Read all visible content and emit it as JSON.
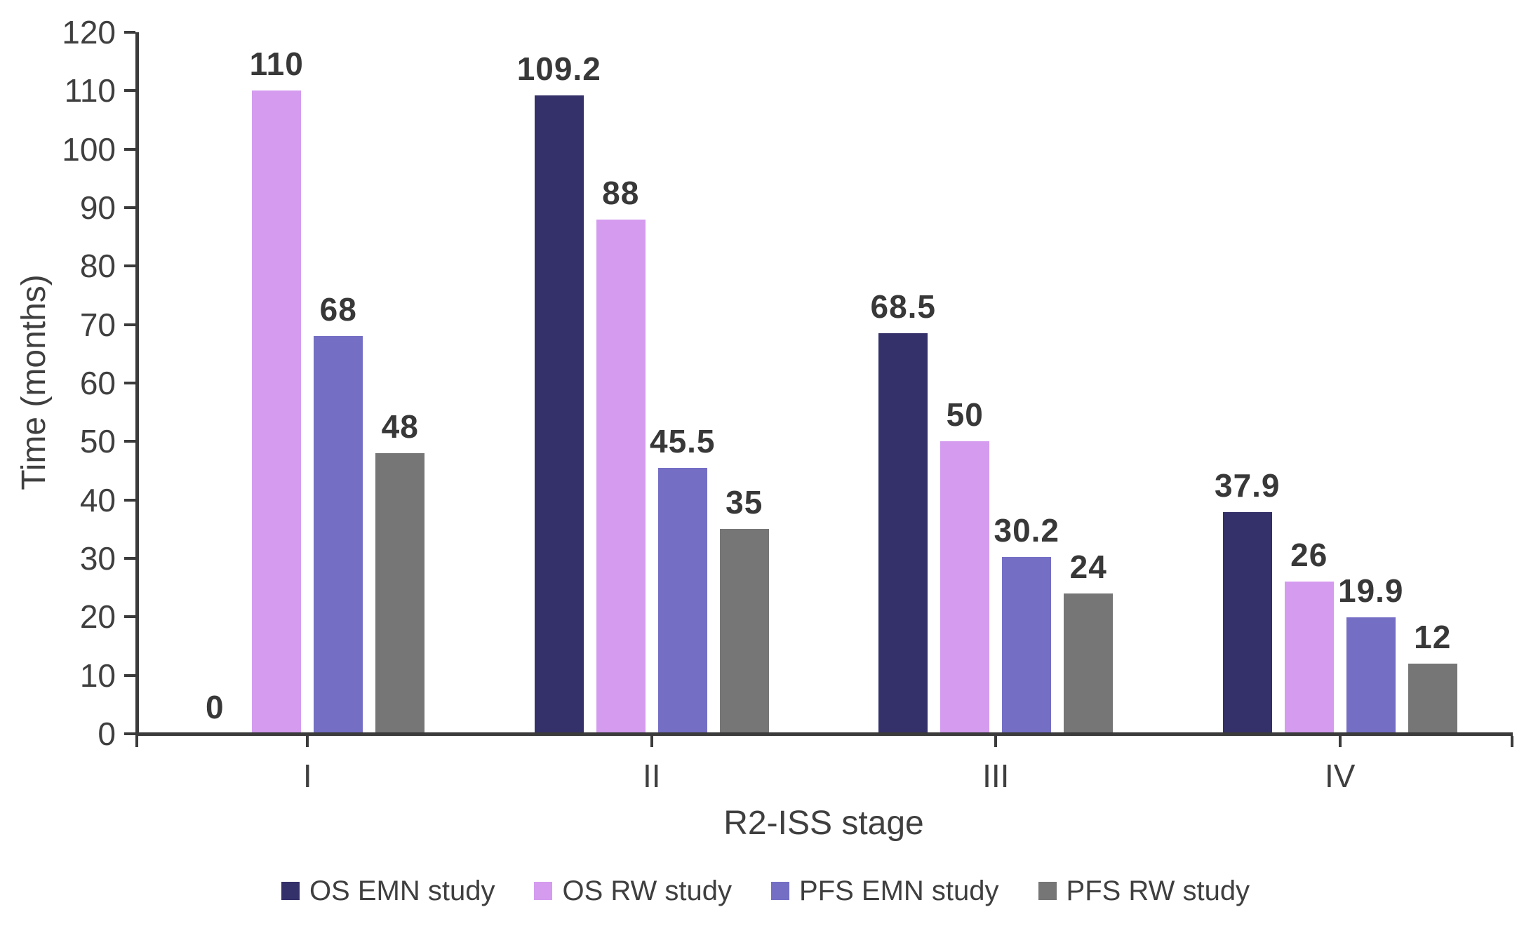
{
  "chart_data": {
    "type": "bar",
    "title": "",
    "xlabel": "R2-ISS stage",
    "ylabel": "Time (months)",
    "categories": [
      "I",
      "II",
      "III",
      "IV"
    ],
    "series": [
      {
        "name": "OS EMN study",
        "color": "#343069",
        "values": [
          0,
          109.2,
          68.5,
          37.9
        ]
      },
      {
        "name": "OS RW study",
        "color": "#d49bef",
        "values": [
          110,
          88,
          50,
          26
        ]
      },
      {
        "name": "PFS EMN study",
        "color": "#746fc4",
        "values": [
          68,
          45.5,
          30.2,
          19.9
        ]
      },
      {
        "name": "PFS RW study",
        "color": "#767676",
        "values": [
          48,
          35,
          24,
          12
        ]
      }
    ],
    "value_labels": [
      "0",
      "110",
      "68",
      "48",
      "109.2",
      "88",
      "45.5",
      "35",
      "68.5",
      "50",
      "30.2",
      "24",
      "37.9",
      "26",
      "19.9",
      "12"
    ],
    "ylim": [
      0,
      120
    ],
    "ytick_step": 10,
    "ytick_labels": [
      "0",
      "10",
      "20",
      "30",
      "40",
      "50",
      "60",
      "70",
      "80",
      "90",
      "100",
      "110",
      "120"
    ],
    "grid": false,
    "legend_position": "bottom",
    "axis_color": "#3b3b3b",
    "text_color": "#3f3f3f"
  }
}
